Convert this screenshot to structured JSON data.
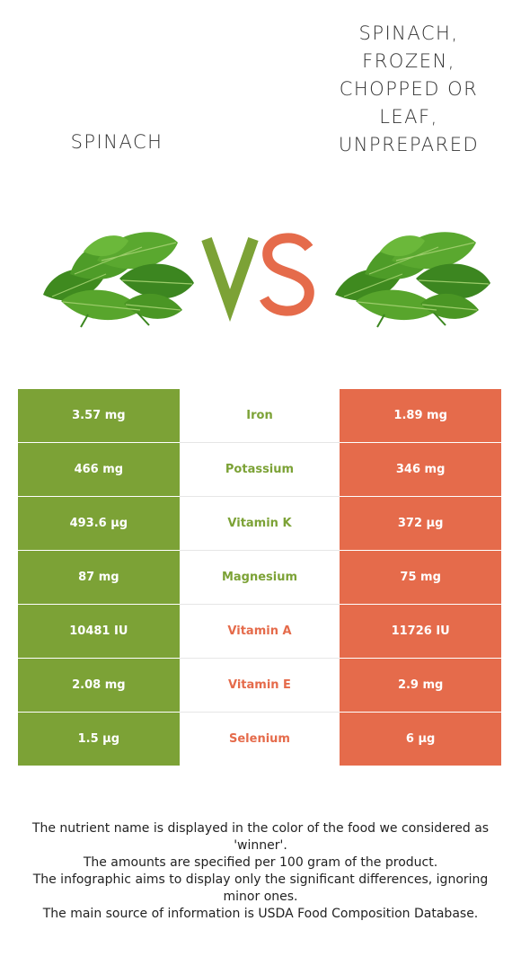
{
  "header": {
    "left_title": "SPINACH",
    "right_title": "SPINACH, FROZEN, CHOPPED OR LEAF, UNPREPARED",
    "vs_v": "V",
    "vs_s": "S"
  },
  "colors": {
    "left_accent": "#7ca236",
    "right_accent": "#e56b4b"
  },
  "images": {
    "left_image": "spinach-leaves-image",
    "right_image": "spinach-leaves-image"
  },
  "rows": [
    {
      "left": "3.57 mg",
      "nutrient": "Iron",
      "right": "1.89 mg",
      "winner": "left"
    },
    {
      "left": "466 mg",
      "nutrient": "Potassium",
      "right": "346 mg",
      "winner": "left"
    },
    {
      "left": "493.6 µg",
      "nutrient": "Vitamin K",
      "right": "372 µg",
      "winner": "left"
    },
    {
      "left": "87 mg",
      "nutrient": "Magnesium",
      "right": "75 mg",
      "winner": "left"
    },
    {
      "left": "10481 IU",
      "nutrient": "Vitamin A",
      "right": "11726 IU",
      "winner": "right"
    },
    {
      "left": "2.08 mg",
      "nutrient": "Vitamin E",
      "right": "2.9 mg",
      "winner": "right"
    },
    {
      "left": "1.5 µg",
      "nutrient": "Selenium",
      "right": "6 µg",
      "winner": "right"
    }
  ],
  "footer": {
    "line1": "The nutrient name is displayed in the color of the food we considered as 'winner'.",
    "line2": "The amounts are specified per 100 gram of the product.",
    "line3": "The infographic aims to display only the significant differences, ignoring minor ones.",
    "line4": "The main source of information is USDA Food Composition Database."
  }
}
